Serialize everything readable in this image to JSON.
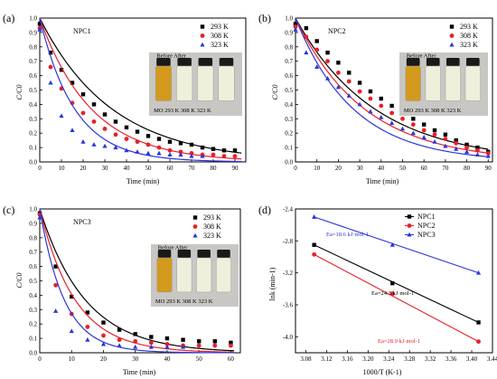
{
  "panels": [
    {
      "letter": "(a)",
      "title": "NPC1",
      "xlabel": "Time (min)",
      "ylabel": "C/C0",
      "photo": {
        "header": "Before After",
        "labels": [
          "MO",
          "293 K",
          "308 K",
          "323 K"
        ]
      }
    },
    {
      "letter": "(b)",
      "title": "NPC2",
      "xlabel": "Time (min)",
      "ylabel": "C/C0",
      "photo": {
        "header": "Before After",
        "labels": [
          "MO",
          "293 K",
          "308 K",
          "323 K"
        ]
      }
    },
    {
      "letter": "(c)",
      "title": "NPC3",
      "xlabel": "Time (min)",
      "ylabel": "C/C0",
      "photo": {
        "header": "Before After",
        "labels": [
          "MO",
          "293 K",
          "308 K",
          "323 K"
        ]
      }
    },
    {
      "letter": "(d)",
      "title": "",
      "xlabel": "1000/T (K-1)",
      "ylabel": "lnk (min-1)",
      "annotations": [
        "Ea=18.6 kJ·mol-1",
        "Ea=24.3 kJ·mol-1",
        "Ea=28.9 kJ·mol-1"
      ]
    }
  ],
  "colors": {
    "293 K": "#000000",
    "308 K": "#e8202a",
    "323 K": "#2b35d8",
    "NPC1": "#000000",
    "NPC2": "#e8202a",
    "NPC3": "#2b35d8"
  },
  "chart_data": [
    {
      "type": "scatter",
      "title": "NPC1",
      "xlabel": "Time (min)",
      "ylabel": "C/C0",
      "xlim": [
        0,
        95
      ],
      "ylim": [
        0,
        1.0
      ],
      "xticks": [
        0,
        10,
        20,
        30,
        40,
        50,
        60,
        70,
        80,
        90
      ],
      "yticks": [
        0.0,
        0.1,
        0.2,
        0.3,
        0.4,
        0.5,
        0.6,
        0.7,
        0.8,
        0.9,
        1.0
      ],
      "series": [
        {
          "name": "293 K",
          "marker": "square",
          "x": [
            0,
            5,
            10,
            15,
            20,
            25,
            30,
            35,
            40,
            45,
            50,
            55,
            60,
            65,
            70,
            75,
            80,
            85,
            90
          ],
          "y": [
            0.96,
            0.76,
            0.64,
            0.55,
            0.47,
            0.4,
            0.33,
            0.28,
            0.24,
            0.21,
            0.18,
            0.16,
            0.14,
            0.13,
            0.12,
            0.1,
            0.09,
            0.08,
            0.08
          ],
          "fit_k": 0.03
        },
        {
          "name": "308 K",
          "marker": "circle",
          "x": [
            0,
            5,
            10,
            15,
            20,
            25,
            30,
            35,
            40,
            45,
            50,
            55,
            60,
            65,
            70,
            75,
            80,
            85,
            90
          ],
          "y": [
            0.93,
            0.66,
            0.51,
            0.41,
            0.34,
            0.28,
            0.23,
            0.19,
            0.16,
            0.14,
            0.12,
            0.1,
            0.08,
            0.07,
            0.06,
            0.05,
            0.05,
            0.04,
            0.04
          ],
          "fit_k": 0.042
        },
        {
          "name": "323 K",
          "marker": "triangle",
          "x": [
            0,
            5,
            10,
            15,
            20,
            25,
            30,
            35,
            40,
            45,
            50,
            55,
            60,
            65,
            70,
            75
          ],
          "y": [
            0.92,
            0.55,
            0.32,
            0.22,
            0.14,
            0.12,
            0.11,
            0.1,
            0.08,
            0.07,
            0.06,
            0.06,
            0.05,
            0.05,
            0.04,
            0.04
          ],
          "fit_k": 0.062
        }
      ]
    },
    {
      "type": "scatter",
      "title": "NPC2",
      "xlabel": "Time (min)",
      "ylabel": "C/C0",
      "xlim": [
        0,
        92
      ],
      "ylim": [
        0,
        1.0
      ],
      "xticks": [
        0,
        10,
        20,
        30,
        40,
        50,
        60,
        70,
        80,
        90
      ],
      "yticks": [
        0.0,
        0.1,
        0.2,
        0.3,
        0.4,
        0.5,
        0.6,
        0.7,
        0.8,
        0.9,
        1.0
      ],
      "series": [
        {
          "name": "293 K",
          "marker": "square",
          "x": [
            0,
            5,
            10,
            15,
            20,
            25,
            30,
            35,
            40,
            45,
            50,
            55,
            60,
            65,
            70,
            75,
            80,
            85,
            90
          ],
          "y": [
            0.96,
            0.93,
            0.84,
            0.76,
            0.69,
            0.62,
            0.55,
            0.49,
            0.44,
            0.39,
            0.34,
            0.3,
            0.26,
            0.22,
            0.19,
            0.15,
            0.12,
            0.1,
            0.07
          ],
          "fit_k": 0.027
        },
        {
          "name": "308 K",
          "marker": "circle",
          "x": [
            0,
            5,
            10,
            15,
            20,
            25,
            30,
            35,
            40,
            45,
            50,
            55,
            60,
            65,
            70,
            75,
            80,
            85,
            90
          ],
          "y": [
            0.94,
            0.87,
            0.78,
            0.7,
            0.62,
            0.56,
            0.49,
            0.44,
            0.39,
            0.34,
            0.3,
            0.26,
            0.22,
            0.19,
            0.16,
            0.13,
            0.1,
            0.08,
            0.06
          ],
          "fit_k": 0.031
        },
        {
          "name": "323 K",
          "marker": "triangle",
          "x": [
            0,
            5,
            10,
            15,
            20,
            25,
            30,
            35,
            40,
            45,
            50,
            55,
            60,
            65,
            70,
            75,
            80,
            85,
            90
          ],
          "y": [
            0.92,
            0.76,
            0.66,
            0.58,
            0.52,
            0.46,
            0.4,
            0.35,
            0.31,
            0.27,
            0.23,
            0.2,
            0.17,
            0.14,
            0.11,
            0.09,
            0.07,
            0.05,
            0.04
          ],
          "fit_k": 0.037
        }
      ]
    },
    {
      "type": "scatter",
      "title": "NPC3",
      "xlabel": "Time (min)",
      "ylabel": "C/C0",
      "xlim": [
        0,
        63
      ],
      "ylim": [
        0,
        1.0
      ],
      "xticks": [
        0,
        10,
        20,
        30,
        40,
        50,
        60
      ],
      "yticks": [
        0.0,
        0.1,
        0.2,
        0.3,
        0.4,
        0.5,
        0.6,
        0.7,
        0.8,
        0.9,
        1.0
      ],
      "series": [
        {
          "name": "293 K",
          "marker": "square",
          "x": [
            0,
            5,
            10,
            15,
            20,
            25,
            30,
            35,
            40,
            45,
            50,
            55,
            60
          ],
          "y": [
            0.97,
            0.6,
            0.39,
            0.28,
            0.21,
            0.16,
            0.13,
            0.11,
            0.1,
            0.09,
            0.08,
            0.08,
            0.07
          ],
          "fit_k": 0.07
        },
        {
          "name": "308 K",
          "marker": "circle",
          "x": [
            0,
            5,
            10,
            15,
            20,
            25,
            30,
            35,
            40,
            45,
            50,
            55,
            60
          ],
          "y": [
            0.96,
            0.47,
            0.27,
            0.18,
            0.12,
            0.09,
            0.08,
            0.07,
            0.06,
            0.05,
            0.05,
            0.05,
            0.05
          ],
          "fit_k": 0.09
        },
        {
          "name": "323 K",
          "marker": "triangle",
          "x": [
            0,
            5,
            10,
            15,
            20,
            25,
            30,
            35,
            40,
            45
          ],
          "y": [
            0.94,
            0.29,
            0.15,
            0.09,
            0.06,
            0.05,
            0.04,
            0.04,
            0.04,
            0.04
          ],
          "fit_k": 0.13
        }
      ]
    },
    {
      "type": "line",
      "title": "",
      "xlabel": "1000/T (K-1)",
      "ylabel": "lnk (min-1)",
      "xlim": [
        3.06,
        3.44
      ],
      "ylim": [
        -4.2,
        -2.4
      ],
      "xticks": [
        3.08,
        3.12,
        3.16,
        3.2,
        3.24,
        3.28,
        3.32,
        3.36,
        3.4,
        3.44
      ],
      "yticks": [
        -4.0,
        -3.6,
        -3.2,
        -2.8,
        -2.4
      ],
      "series": [
        {
          "name": "NPC1",
          "marker": "square",
          "x": [
            3.096,
            3.247,
            3.413
          ],
          "y": [
            -2.85,
            -3.33,
            -3.82
          ]
        },
        {
          "name": "NPC2",
          "marker": "circle",
          "x": [
            3.096,
            3.247,
            3.413
          ],
          "y": [
            -2.97,
            -3.46,
            -4.06
          ]
        },
        {
          "name": "NPC3",
          "marker": "triangle",
          "x": [
            3.096,
            3.247,
            3.413
          ],
          "y": [
            -2.5,
            -2.85,
            -3.2
          ]
        }
      ]
    }
  ]
}
